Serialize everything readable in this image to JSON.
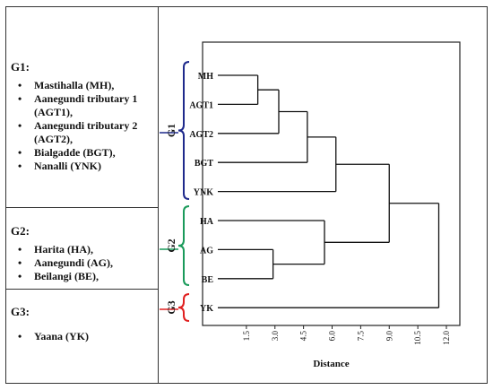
{
  "groups": [
    {
      "title": "G1:",
      "items": [
        "Mastihalla (MH),",
        "Aanegundi tributary 1 (AGT1),",
        "Aanegundi tributary 2 (AGT2),",
        "Bialgadde (BGT),",
        "Nanalli (YNK)"
      ]
    },
    {
      "title": "G2:",
      "items": [
        "Harita (HA),",
        "Aanegundi (AG),",
        "Beilangi (BE),"
      ]
    },
    {
      "title": "G3:",
      "items": [
        "Yaana (YK)"
      ]
    }
  ],
  "brackets": [
    {
      "label": "G1",
      "color": "#1f2a8c"
    },
    {
      "label": "G2",
      "color": "#1a9a5a"
    },
    {
      "label": "G3",
      "color": "#e02020"
    }
  ],
  "chart_data": {
    "type": "dendrogram",
    "xlabel": "Distance",
    "xlim": [
      0,
      12.8
    ],
    "xticks": [
      1.5,
      3.0,
      4.5,
      6.0,
      7.5,
      9.0,
      10.5,
      12.0
    ],
    "xtick_labels": [
      "1.5",
      "3.0",
      "4.5",
      "6.0",
      "7.5",
      "9.0",
      "10.5",
      "12.0"
    ],
    "leaves": [
      "MH",
      "AGT1",
      "AGT2",
      "BGT",
      "YNK",
      "HA",
      "AG",
      "BE",
      "YK"
    ],
    "merges": [
      {
        "a": "MH",
        "b": "AGT1",
        "height": 2.1
      },
      {
        "a": 0,
        "b": "AGT2",
        "height": 3.2
      },
      {
        "a": 1,
        "b": "BGT",
        "height": 4.7
      },
      {
        "a": 2,
        "b": "YNK",
        "height": 6.2
      },
      {
        "a": "AG",
        "b": "BE",
        "height": 2.9
      },
      {
        "a": "HA",
        "b": 4,
        "height": 5.6
      },
      {
        "a": 3,
        "b": 5,
        "height": 9.0
      },
      {
        "a": 6,
        "b": "YK",
        "height": 11.6
      }
    ]
  }
}
